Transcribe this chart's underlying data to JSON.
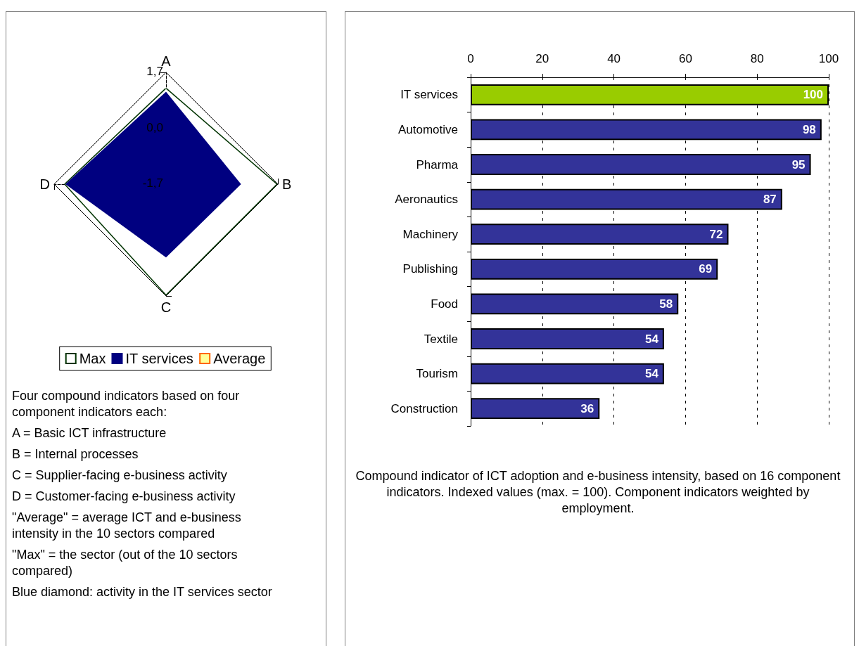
{
  "chart_data": [
    {
      "type": "radar",
      "categories": [
        "A",
        "B",
        "C",
        "D"
      ],
      "ylim": [
        -1.7,
        1.7
      ],
      "yticks": [
        {
          "value": -1.7,
          "label": "-1,7"
        },
        {
          "value": 0,
          "label": "0,0"
        },
        {
          "value": 1.7,
          "label": "1,7"
        }
      ],
      "legend": "bottom",
      "marker": "none",
      "series": [
        {
          "name": "Max",
          "color": "#003300",
          "values": [
            1.2,
            1.65,
            1.65,
            1.36
          ]
        },
        {
          "name": "IT services",
          "color": "#000080",
          "values": [
            1.11,
            0.58,
            0.53,
            1.36
          ]
        },
        {
          "name": "Average",
          "color": "#ff6600",
          "values": [
            null,
            null,
            null,
            null
          ]
        }
      ],
      "annotations": [
        "Four compound indicators based on four component indicators each:",
        "A = Basic ICT infrastructure",
        "B = Internal processes",
        "C = Supplier-facing e-business activity",
        "D = Customer-facing e-business activity",
        "\"Average\" = average ICT and e-business intensity in the 10 sectors compared",
        "\"Max\" = the sector (out of the 10 sectors compared)",
        "Blue diamond: activity in the IT services sector"
      ]
    },
    {
      "type": "bar",
      "orientation": "horizontal",
      "categories": [
        "IT services",
        "Automotive",
        "Pharma",
        "Aeronautics",
        "Machinery",
        "Publishing",
        "Food",
        "Textile",
        "Tourism",
        "Construction"
      ],
      "values": [
        100,
        98,
        95,
        87,
        72,
        69,
        58,
        54,
        54,
        36
      ],
      "colors": [
        "#99cc00",
        "#333399",
        "#333399",
        "#333399",
        "#333399",
        "#333399",
        "#333399",
        "#333399",
        "#333399",
        "#333399"
      ],
      "xlim": [
        0,
        100
      ],
      "xticks": [
        0,
        20,
        40,
        60,
        80,
        100
      ],
      "grid": "x",
      "data_labels": true,
      "legend": false,
      "annotations": [
        "Compound indicator of ICT adoption and e-business intensity, based on 16 component indicators. Indexed values (max. = 100). Component indicators weighted by employment."
      ]
    }
  ]
}
